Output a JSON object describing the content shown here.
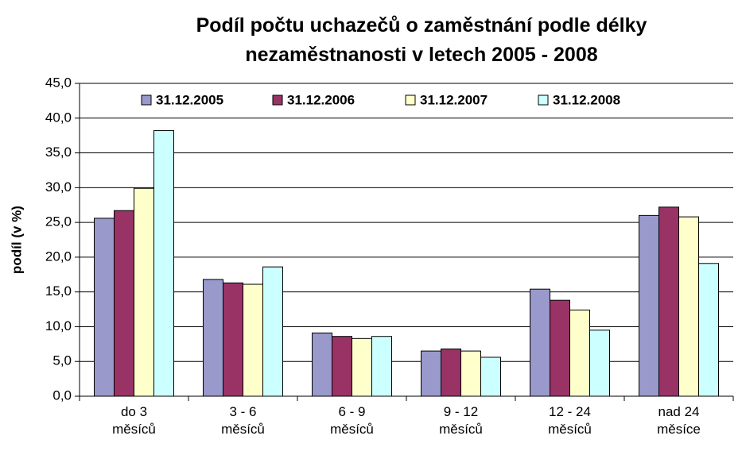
{
  "chart_data": {
    "type": "bar",
    "title": "Podíl počtu uchazečů o zaměstnání podle délky\nnezaměstnanosti v letech 2005 - 2008",
    "ylabel": "podíl (v %)",
    "categories": [
      "do 3\nměsíců",
      "3 - 6\nměsíců",
      "6 - 9\nměsíců",
      "9 - 12\nměsíců",
      "12 - 24\nměsíců",
      "nad 24\nměsíce"
    ],
    "series": [
      {
        "name": "31.12.2005",
        "color": "#9999cc",
        "values": [
          25.6,
          16.8,
          9.1,
          6.5,
          15.4,
          26.0
        ]
      },
      {
        "name": "31.12.2006",
        "color": "#993366",
        "values": [
          26.7,
          16.3,
          8.6,
          6.8,
          13.8,
          27.2
        ]
      },
      {
        "name": "31.12.2007",
        "color": "#ffffcc",
        "values": [
          29.9,
          16.1,
          8.3,
          6.5,
          12.4,
          25.8
        ]
      },
      {
        "name": "31.12.2008",
        "color": "#ccffff",
        "values": [
          38.2,
          18.6,
          8.6,
          5.6,
          9.5,
          19.1
        ]
      }
    ],
    "ylim": [
      0,
      45
    ],
    "yticks": [
      {
        "value": 0,
        "label": "0,0"
      },
      {
        "value": 5,
        "label": "5,0"
      },
      {
        "value": 10,
        "label": "10,0"
      },
      {
        "value": 15,
        "label": "15,0"
      },
      {
        "value": 20,
        "label": "20,0"
      },
      {
        "value": 25,
        "label": "25,0"
      },
      {
        "value": 30,
        "label": "30,0"
      },
      {
        "value": 35,
        "label": "35,0"
      },
      {
        "value": 40,
        "label": "40,0"
      },
      {
        "value": 45,
        "label": "45,0"
      }
    ],
    "grid": true,
    "legend": "top"
  }
}
